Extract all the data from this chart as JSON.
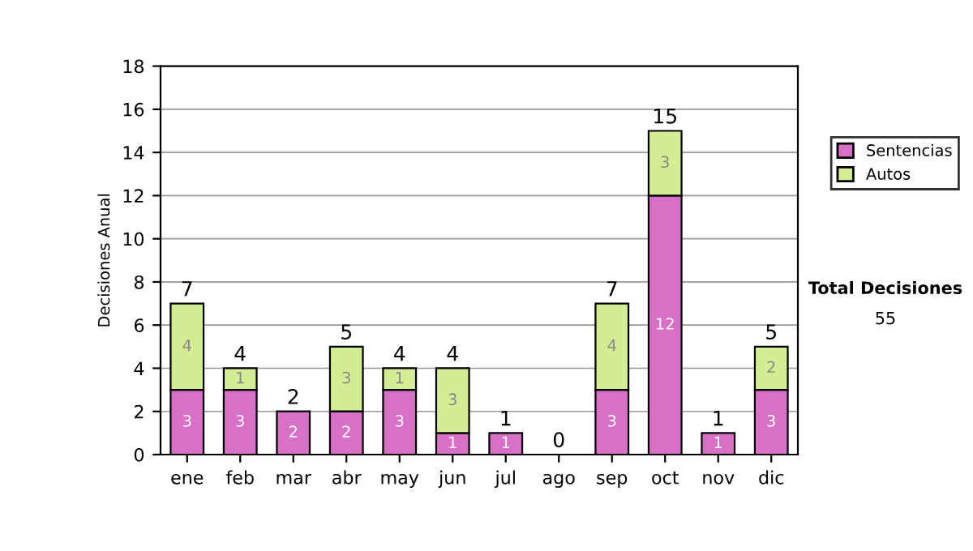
{
  "chart_data": {
    "type": "bar",
    "stacked": true,
    "ylabel": "Decisiones Anual",
    "categories": [
      "ene",
      "feb",
      "mar",
      "abr",
      "may",
      "jun",
      "jul",
      "ago",
      "sep",
      "oct",
      "nov",
      "dic"
    ],
    "series": [
      {
        "name": "Sentencias",
        "color": "#d870c8",
        "values": [
          3,
          3,
          2,
          2,
          3,
          1,
          1,
          0,
          3,
          12,
          1,
          3
        ],
        "value_labels": [
          "3",
          "3",
          "2",
          "2",
          "3",
          "1",
          "1",
          null,
          "3",
          "12",
          "1",
          "3"
        ]
      },
      {
        "name": "Autos",
        "color": "#d4ec94",
        "values": [
          4,
          1,
          0,
          3,
          1,
          3,
          0,
          0,
          4,
          3,
          0,
          2
        ],
        "value_labels": [
          "4",
          "1",
          null,
          "3",
          "1",
          "3",
          null,
          null,
          "4",
          "3",
          null,
          "2"
        ]
      }
    ],
    "totals": [
      "7",
      "4",
      "2",
      "5",
      "4",
      "4",
      "1",
      "0",
      "7",
      "15",
      "1",
      "5"
    ],
    "ylim": [
      0,
      18
    ],
    "yticks": [
      0,
      2,
      4,
      6,
      8,
      10,
      12,
      14,
      16,
      18
    ],
    "grid": "y",
    "legend": "right",
    "annotations": [
      "Total Decisiones",
      "55"
    ]
  }
}
